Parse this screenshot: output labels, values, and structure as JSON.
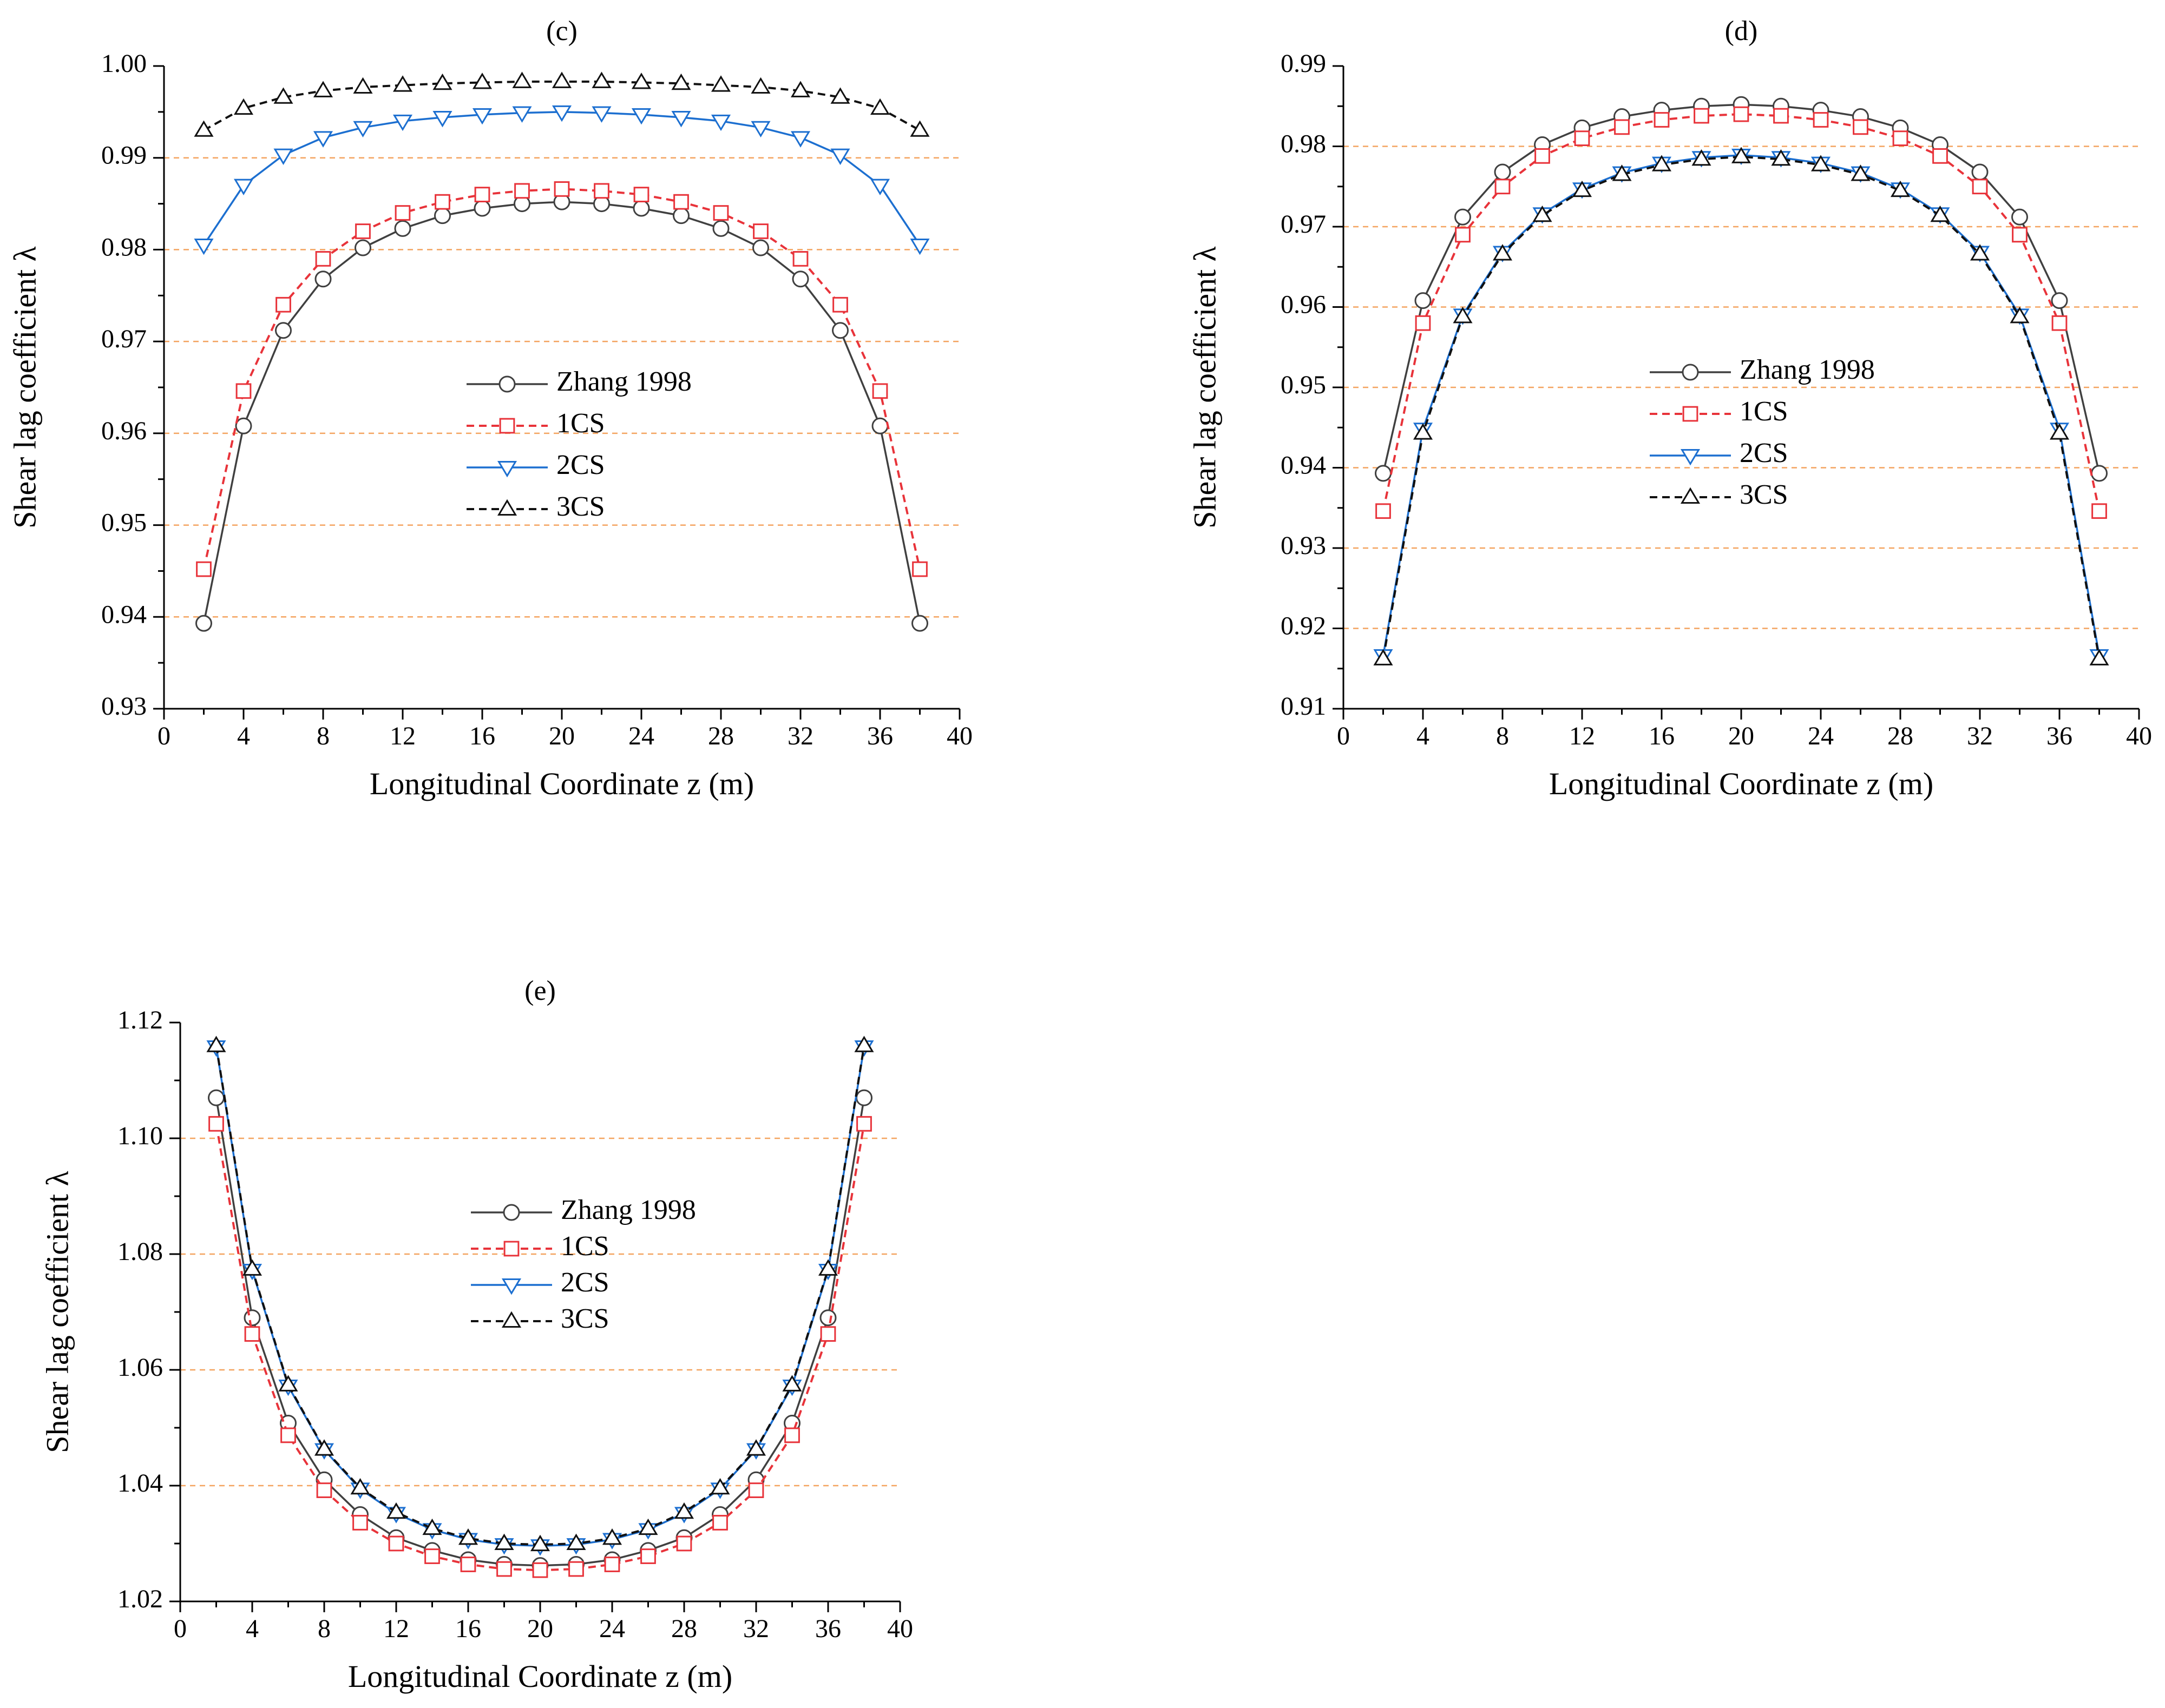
{
  "figure": {
    "panel_count": 3
  },
  "colors": {
    "zhang": "#404040",
    "cs1": "#e8333a",
    "cs2": "#1c6fd0",
    "cs3": "#111111",
    "grid": "#f4a460",
    "axis": "#000000"
  },
  "chart_data": [
    {
      "id": "c",
      "type": "line",
      "title": "(c)",
      "xlabel": "Longitudinal Coordinate z (m)",
      "ylabel": "Shear lag coefficient λ",
      "xlim": [
        0,
        40
      ],
      "ylim": [
        0.93,
        1.0
      ],
      "x_ticks": [
        0,
        4,
        8,
        12,
        16,
        20,
        24,
        28,
        32,
        36,
        40
      ],
      "x_tick_labels": [
        "0",
        "4",
        "8",
        "12",
        "16",
        "20",
        "24",
        "28",
        "32",
        "36",
        "40"
      ],
      "y_ticks": [
        0.93,
        0.94,
        0.95,
        0.96,
        0.97,
        0.98,
        0.99,
        1.0
      ],
      "y_tick_labels": [
        "0.93",
        "0.94",
        "0.95",
        "0.96",
        "0.97",
        "0.98",
        "0.99",
        "1.00"
      ],
      "grid": "horizontal dashed",
      "legend_position": "center",
      "x": [
        2,
        4,
        6,
        8,
        10,
        12,
        14,
        16,
        18,
        20,
        22,
        24,
        26,
        28,
        30,
        32,
        34,
        36,
        38
      ],
      "series": [
        {
          "key": "zhang",
          "name": "Zhang 1998",
          "marker": "circle",
          "dash": "solid",
          "values": [
            0.9393,
            0.9608,
            0.9712,
            0.9768,
            0.9802,
            0.9823,
            0.9837,
            0.9845,
            0.985,
            0.9852,
            0.985,
            0.9845,
            0.9837,
            0.9823,
            0.9802,
            0.9768,
            0.9712,
            0.9608,
            0.9393
          ]
        },
        {
          "key": "cs1",
          "name": "1CS",
          "marker": "square",
          "dash": "dashed",
          "values": [
            0.9452,
            0.9646,
            0.974,
            0.979,
            0.982,
            0.984,
            0.9852,
            0.986,
            0.9864,
            0.9866,
            0.9864,
            0.986,
            0.9852,
            0.984,
            0.982,
            0.979,
            0.974,
            0.9646,
            0.9452
          ]
        },
        {
          "key": "cs2",
          "name": "2CS",
          "marker": "triangle-down",
          "dash": "solid",
          "values": [
            0.9805,
            0.987,
            0.9903,
            0.9922,
            0.9933,
            0.994,
            0.9944,
            0.9947,
            0.9949,
            0.995,
            0.9949,
            0.9947,
            0.9944,
            0.994,
            0.9933,
            0.9922,
            0.9903,
            0.987,
            0.9805
          ]
        },
        {
          "key": "cs3",
          "name": "3CS",
          "marker": "triangle-up",
          "dash": "dashed",
          "values": [
            0.993,
            0.9954,
            0.9966,
            0.9973,
            0.9977,
            0.9979,
            0.9981,
            0.9982,
            0.9983,
            0.9983,
            0.9983,
            0.9982,
            0.9981,
            0.9979,
            0.9977,
            0.9973,
            0.9966,
            0.9954,
            0.993
          ]
        }
      ]
    },
    {
      "id": "d",
      "type": "line",
      "title": "(d)",
      "xlabel": "Longitudinal Coordinate z (m)",
      "ylabel": "Shear lag coefficient λ",
      "xlim": [
        0,
        40
      ],
      "ylim": [
        0.91,
        0.99
      ],
      "x_ticks": [
        0,
        4,
        8,
        12,
        16,
        20,
        24,
        28,
        32,
        36,
        40
      ],
      "x_tick_labels": [
        "0",
        "4",
        "8",
        "12",
        "16",
        "20",
        "24",
        "28",
        "32",
        "36",
        "40"
      ],
      "y_ticks": [
        0.91,
        0.92,
        0.93,
        0.94,
        0.95,
        0.96,
        0.97,
        0.98,
        0.99
      ],
      "y_tick_labels": [
        "0.91",
        "0.92",
        "0.93",
        "0.94",
        "0.95",
        "0.96",
        "0.97",
        "0.98",
        "0.99"
      ],
      "grid": "horizontal dashed",
      "legend_position": "center",
      "x": [
        2,
        4,
        6,
        8,
        10,
        12,
        14,
        16,
        18,
        20,
        22,
        24,
        26,
        28,
        30,
        32,
        34,
        36,
        38
      ],
      "series": [
        {
          "key": "zhang",
          "name": "Zhang 1998",
          "marker": "circle",
          "dash": "solid",
          "values": [
            0.9393,
            0.9608,
            0.9712,
            0.9768,
            0.9802,
            0.9823,
            0.9837,
            0.9845,
            0.985,
            0.9852,
            0.985,
            0.9845,
            0.9837,
            0.9823,
            0.9802,
            0.9768,
            0.9712,
            0.9608,
            0.9393
          ]
        },
        {
          "key": "cs1",
          "name": "1CS",
          "marker": "square",
          "dash": "dashed",
          "values": [
            0.9346,
            0.958,
            0.969,
            0.975,
            0.9788,
            0.981,
            0.9824,
            0.9833,
            0.9838,
            0.984,
            0.9838,
            0.9833,
            0.9824,
            0.981,
            0.9788,
            0.975,
            0.969,
            0.958,
            0.9346
          ]
        },
        {
          "key": "cs2",
          "name": "2CS",
          "marker": "triangle-down",
          "dash": "solid",
          "values": [
            0.9166,
            0.9448,
            0.959,
            0.9668,
            0.9716,
            0.9747,
            0.9767,
            0.9779,
            0.9786,
            0.9789,
            0.9786,
            0.9779,
            0.9767,
            0.9747,
            0.9716,
            0.9668,
            0.959,
            0.9448,
            0.9166
          ]
        },
        {
          "key": "cs3",
          "name": "3CS",
          "marker": "triangle-up",
          "dash": "dashed",
          "values": [
            0.9162,
            0.9443,
            0.9588,
            0.9666,
            0.9714,
            0.9745,
            0.9765,
            0.9777,
            0.9784,
            0.9787,
            0.9784,
            0.9777,
            0.9765,
            0.9745,
            0.9714,
            0.9666,
            0.9588,
            0.9443,
            0.9162
          ]
        }
      ]
    },
    {
      "id": "e",
      "type": "line",
      "title": "(e)",
      "xlabel": "Longitudinal Coordinate z (m)",
      "ylabel": "Shear lag coefficient λ",
      "xlim": [
        0,
        40
      ],
      "ylim": [
        1.02,
        1.12
      ],
      "x_ticks": [
        0,
        4,
        8,
        12,
        16,
        20,
        24,
        28,
        32,
        36,
        40
      ],
      "x_tick_labels": [
        "0",
        "4",
        "8",
        "12",
        "16",
        "20",
        "24",
        "28",
        "32",
        "36",
        "40"
      ],
      "y_ticks": [
        1.02,
        1.04,
        1.06,
        1.08,
        1.1,
        1.12
      ],
      "y_tick_labels": [
        "1.02",
        "1.04",
        "1.06",
        "1.08",
        "1.10",
        "1.12"
      ],
      "grid": "horizontal dashed",
      "legend_position": "center",
      "x": [
        2,
        4,
        6,
        8,
        10,
        12,
        14,
        16,
        18,
        20,
        22,
        24,
        26,
        28,
        30,
        32,
        34,
        36,
        38
      ],
      "series": [
        {
          "key": "zhang",
          "name": "Zhang 1998",
          "marker": "circle",
          "dash": "solid",
          "values": [
            1.107,
            1.069,
            1.0508,
            1.041,
            1.035,
            1.031,
            1.0288,
            1.0272,
            1.0264,
            1.0262,
            1.0264,
            1.0272,
            1.0288,
            1.031,
            1.035,
            1.041,
            1.0508,
            1.069,
            1.107
          ]
        },
        {
          "key": "cs1",
          "name": "1CS",
          "marker": "square",
          "dash": "dashed",
          "values": [
            1.1025,
            1.0662,
            1.0487,
            1.0392,
            1.0336,
            1.03,
            1.0278,
            1.0264,
            1.0256,
            1.0254,
            1.0256,
            1.0264,
            1.0278,
            1.03,
            1.0336,
            1.0392,
            1.0487,
            1.0662,
            1.1025
          ]
        },
        {
          "key": "cs2",
          "name": "2CS",
          "marker": "triangle-down",
          "dash": "solid",
          "values": [
            1.1158,
            1.0772,
            1.0572,
            1.0462,
            1.0394,
            1.0352,
            1.0324,
            1.0307,
            1.0298,
            1.0296,
            1.0298,
            1.0307,
            1.0324,
            1.0352,
            1.0394,
            1.0462,
            1.0572,
            1.0772,
            1.1158
          ]
        },
        {
          "key": "cs3",
          "name": "3CS",
          "marker": "triangle-up",
          "dash": "dashed",
          "values": [
            1.116,
            1.0774,
            1.0574,
            1.0463,
            1.0396,
            1.0354,
            1.0326,
            1.0309,
            1.03,
            1.0298,
            1.03,
            1.0309,
            1.0326,
            1.0354,
            1.0396,
            1.0463,
            1.0574,
            1.0774,
            1.116
          ]
        }
      ]
    }
  ]
}
